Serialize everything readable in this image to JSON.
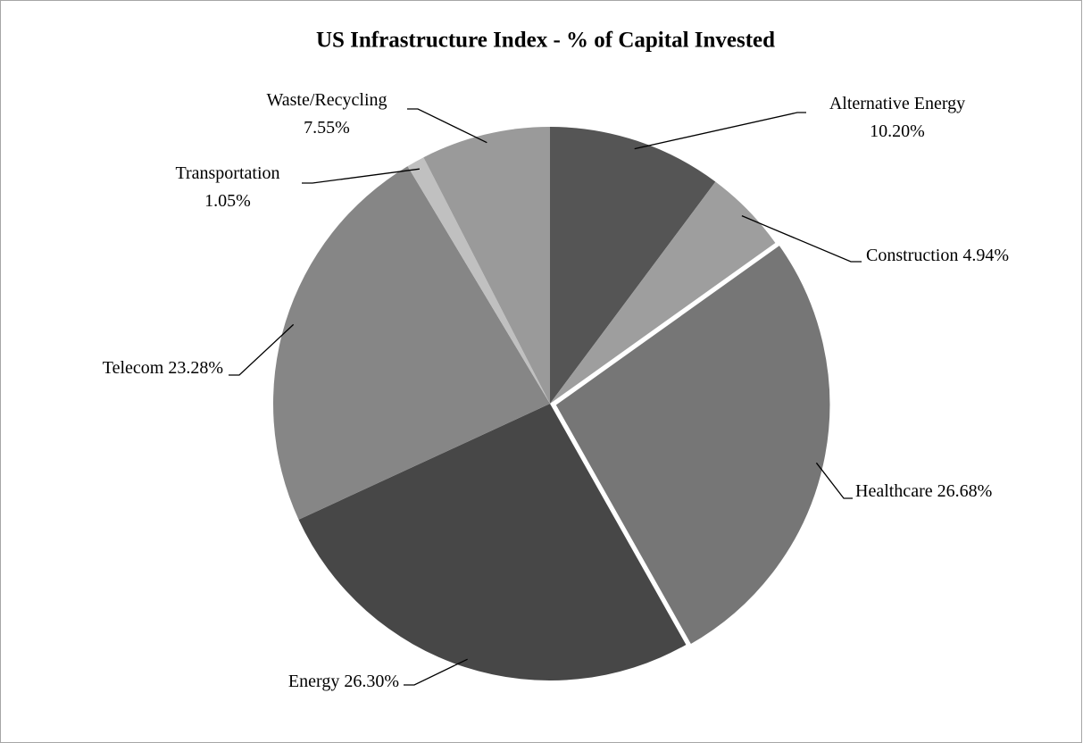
{
  "chart_data": {
    "type": "pie",
    "title": "US Infrastructure Index - % of Capital Invested",
    "categories": [
      "Alternative Energy",
      "Construction",
      "Healthcare",
      "Energy",
      "Telecom",
      "Transportation",
      "Waste/Recycling"
    ],
    "values": [
      10.2,
      4.94,
      26.68,
      26.3,
      23.28,
      1.05,
      7.55
    ],
    "value_labels": [
      "10.20%",
      "4.94%",
      "26.68%",
      "26.30%",
      "23.28%",
      "1.05%",
      "7.55%"
    ],
    "colors": [
      "#555555",
      "#9e9e9e",
      "#767676",
      "#474747",
      "#868686",
      "#c0c0c0",
      "#9a9a9a"
    ]
  }
}
